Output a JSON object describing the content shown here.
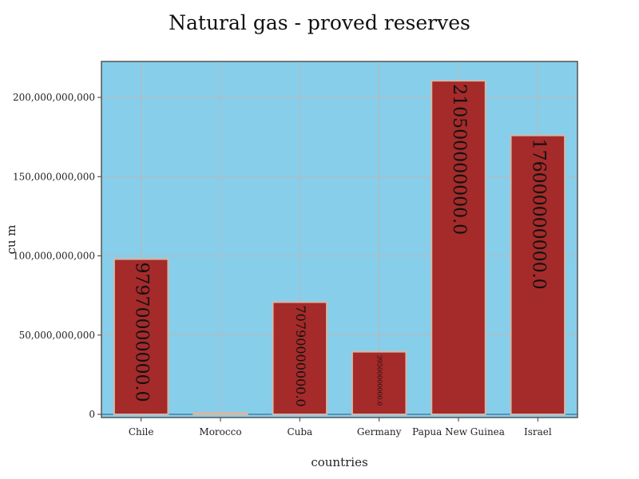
{
  "chart_data": {
    "type": "bar",
    "title": "Natural gas - proved reserves",
    "xlabel": "countries",
    "ylabel": "cu m",
    "categories": [
      "Chile",
      "Morocco",
      "Cuba",
      "Germany",
      "Papua New Guinea",
      "Israel"
    ],
    "values": [
      97970000000,
      1000000000,
      70790000000,
      39500000000,
      210500000000,
      176000000000
    ],
    "value_labels": [
      "97970000000.0",
      "",
      "70790000000.0",
      "39500000000.0",
      "210500000000.0",
      "176000000000.0"
    ],
    "ylim": [
      0,
      220000000000
    ],
    "yticks": [
      0,
      50000000000,
      100000000000,
      150000000000,
      200000000000
    ],
    "ytick_labels": [
      "0",
      "50,000,000,000",
      "100,000,000,000",
      "150,000,000,000",
      "200,000,000,000"
    ],
    "grid": true,
    "legend": "none",
    "colors": {
      "plot_background": "#87ceeb",
      "bar_fill": "#a52a2a",
      "bar_outline": "#d3b8a8",
      "grid": "#b9b9b9",
      "frame": "#555555"
    }
  }
}
